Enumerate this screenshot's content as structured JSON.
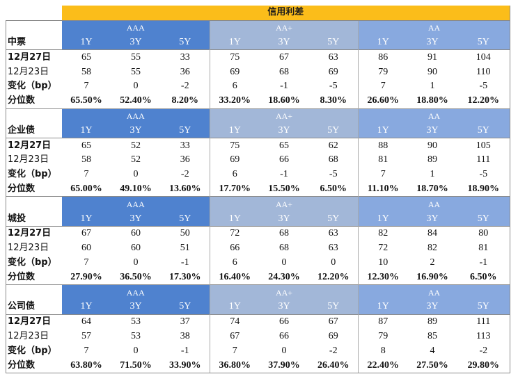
{
  "title": "信用利差",
  "colors": {
    "title_bg": "#fbbd1a",
    "aaa_bg": "#4f82cf",
    "aa_plus_bg": "#a2b7d8",
    "aa_bg": "#88a9df"
  },
  "ratings": [
    "AAA",
    "AA+",
    "AA"
  ],
  "tenors": [
    "1Y",
    "3Y",
    "5Y",
    "1Y",
    "3Y",
    "5Y",
    "1Y",
    "3Y",
    "5Y"
  ],
  "sections": [
    {
      "name": "中票",
      "rows": [
        {
          "label": "12月27日",
          "values": [
            "65",
            "55",
            "33",
            "75",
            "67",
            "63",
            "86",
            "91",
            "104"
          ]
        },
        {
          "label": "12月23日",
          "values": [
            "58",
            "55",
            "36",
            "69",
            "68",
            "69",
            "79",
            "90",
            "110"
          ]
        },
        {
          "label": "变化（bp）",
          "values": [
            "7",
            "0",
            "-2",
            "6",
            "-1",
            "-5",
            "7",
            "1",
            "-5"
          ]
        },
        {
          "label": "分位数",
          "values": [
            "65.50%",
            "52.40%",
            "8.20%",
            "33.20%",
            "18.60%",
            "8.30%",
            "26.60%",
            "18.80%",
            "12.20%"
          ]
        }
      ]
    },
    {
      "name": "企业债",
      "rows": [
        {
          "label": "12月27日",
          "values": [
            "65",
            "52",
            "33",
            "75",
            "65",
            "62",
            "88",
            "90",
            "105"
          ]
        },
        {
          "label": "12月23日",
          "values": [
            "58",
            "52",
            "36",
            "69",
            "66",
            "68",
            "81",
            "89",
            "111"
          ]
        },
        {
          "label": "变化（bp）",
          "values": [
            "7",
            "0",
            "-2",
            "6",
            "-1",
            "-5",
            "7",
            "1",
            "-5"
          ]
        },
        {
          "label": "分位数",
          "values": [
            "65.00%",
            "49.10%",
            "13.60%",
            "17.70%",
            "15.50%",
            "6.50%",
            "11.10%",
            "18.70%",
            "18.90%"
          ]
        }
      ]
    },
    {
      "name": "城投",
      "rows": [
        {
          "label": "12月27日",
          "values": [
            "67",
            "60",
            "50",
            "72",
            "68",
            "63",
            "82",
            "84",
            "80"
          ]
        },
        {
          "label": "12月23日",
          "values": [
            "60",
            "60",
            "51",
            "66",
            "68",
            "63",
            "72",
            "82",
            "81"
          ]
        },
        {
          "label": "变化（bp）",
          "values": [
            "7",
            "0",
            "-1",
            "6",
            "0",
            "0",
            "10",
            "2",
            "-1"
          ]
        },
        {
          "label": "分位数",
          "values": [
            "27.90%",
            "36.50%",
            "17.30%",
            "16.40%",
            "24.30%",
            "12.20%",
            "12.30%",
            "16.90%",
            "6.50%"
          ]
        }
      ]
    },
    {
      "name": "公司债",
      "rows": [
        {
          "label": "12月27日",
          "values": [
            "64",
            "53",
            "37",
            "74",
            "66",
            "67",
            "87",
            "89",
            "111"
          ]
        },
        {
          "label": "12月23日",
          "values": [
            "57",
            "53",
            "38",
            "67",
            "66",
            "69",
            "79",
            "85",
            "113"
          ]
        },
        {
          "label": "变化（bp）",
          "values": [
            "7",
            "0",
            "-1",
            "7",
            "0",
            "-2",
            "8",
            "4",
            "-2"
          ]
        },
        {
          "label": "分位数",
          "values": [
            "63.80%",
            "71.50%",
            "33.90%",
            "36.80%",
            "37.90%",
            "26.40%",
            "22.40%",
            "27.50%",
            "29.80%"
          ]
        }
      ]
    }
  ]
}
